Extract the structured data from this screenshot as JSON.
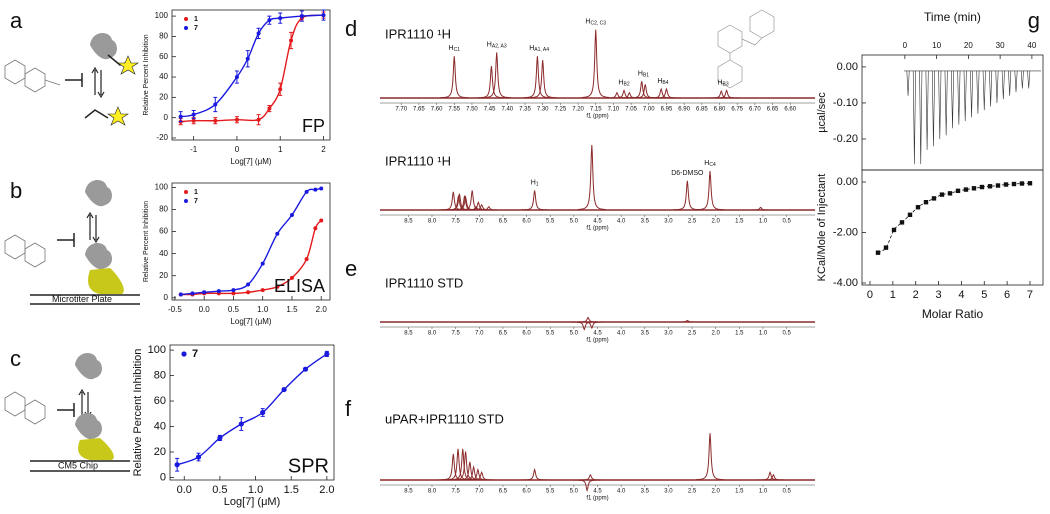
{
  "chart_data": [
    {
      "type": "scatter",
      "panel": "a",
      "annotation": "FP",
      "y_label": "Relative Percent Inhibition",
      "x_label": "Log[7] (μM)",
      "xlim": [
        -1.5,
        2.15
      ],
      "ylim": [
        -22,
        106
      ],
      "xticks": [
        -1,
        0,
        1,
        2
      ],
      "yticks": [
        -20,
        0,
        20,
        40,
        60,
        80,
        100
      ],
      "legend": "upper left",
      "series": [
        {
          "name": "1",
          "color": "#e41a1c",
          "x": [
            -1.3,
            -1,
            -0.5,
            0,
            0.5,
            0.75,
            1,
            1.25,
            1.5,
            2
          ],
          "values": [
            -4,
            -3,
            -3,
            -2,
            -2,
            9,
            28,
            76,
            98,
            101
          ],
          "errors": [
            3,
            3,
            3,
            3,
            5,
            3,
            6,
            8,
            3,
            3
          ]
        },
        {
          "name": "7",
          "color": "#1a1adf",
          "x": [
            -1.3,
            -1,
            -0.5,
            0,
            0.25,
            0.5,
            0.75,
            1,
            1.5,
            2
          ],
          "values": [
            1,
            3,
            13,
            40,
            58,
            83,
            96,
            98,
            100,
            101
          ],
          "errors": [
            5,
            4,
            7,
            6,
            8,
            5,
            4,
            5,
            5,
            5
          ]
        }
      ]
    },
    {
      "type": "scatter",
      "panel": "b",
      "annotation": "ELISA",
      "surface_label": "Microtiter Plate",
      "y_label": "Relative Percent Inhibition",
      "x_label": "Log[7] (μM)",
      "xlim": [
        -0.55,
        2.15
      ],
      "ylim": [
        -2,
        104
      ],
      "xticks": [
        -0.5,
        {
          "value": 0,
          "label": "0.0"
        },
        0.5,
        {
          "value": 1,
          "label": "1.0"
        },
        1.5,
        {
          "value": 2,
          "label": "2.0"
        }
      ],
      "yticks": [
        0,
        20,
        40,
        60,
        80,
        100
      ],
      "legend": "upper left",
      "series": [
        {
          "name": "1",
          "color": "#e41a1c",
          "x": [
            -0.4,
            -0.2,
            0,
            0.25,
            0.5,
            0.75,
            1,
            1.25,
            1.5,
            1.75,
            1.9,
            2
          ],
          "values": [
            3,
            3,
            4,
            4,
            4,
            5,
            7,
            10,
            18,
            35,
            63,
            70
          ]
        },
        {
          "name": "7",
          "color": "#1a1adf",
          "x": [
            -0.4,
            -0.2,
            0,
            0.25,
            0.5,
            0.75,
            1,
            1.25,
            1.5,
            1.75,
            1.9,
            2
          ],
          "values": [
            3,
            4,
            5,
            6,
            7,
            12,
            31,
            58,
            75,
            96,
            98,
            99
          ]
        }
      ]
    },
    {
      "type": "scatter",
      "panel": "c",
      "annotation": "SPR",
      "surface_label": "CM5 Chip",
      "y_label": "Relative Percent Inhibition",
      "x_label": "Log[7] (μM)",
      "xlim": [
        -0.2,
        2.1
      ],
      "ylim": [
        -2,
        104
      ],
      "xticks": [
        {
          "value": 0,
          "label": "0.0"
        },
        0.5,
        {
          "value": 1,
          "label": "1.0"
        },
        1.5,
        {
          "value": 2,
          "label": "2.0"
        }
      ],
      "yticks": [
        0,
        20,
        40,
        60,
        80,
        100
      ],
      "legend": "upper left",
      "series": [
        {
          "name": "7",
          "color": "#1a1adf",
          "x": [
            -0.1,
            0.2,
            0.5,
            0.8,
            1.1,
            1.4,
            1.7,
            2.0
          ],
          "values": [
            10,
            16,
            31,
            42,
            51,
            69,
            85,
            97
          ],
          "errors": [
            5,
            3,
            2,
            5,
            3,
            1,
            1,
            2
          ]
        }
      ]
    },
    {
      "type": "spectrum",
      "panel": "d",
      "title": "IPR1110 ¹H",
      "x_label": "f1 (ppm)",
      "color": "#8b2a2a",
      "xlim": [
        7.76,
        6.53
      ],
      "xticks": [
        {
          "value": 7.7,
          "label": "7.70"
        },
        7.65,
        {
          "value": 7.6,
          "label": "7.60"
        },
        7.55,
        {
          "value": 7.5,
          "label": "7.50"
        },
        7.45,
        {
          "value": 7.4,
          "label": "7.40"
        },
        7.35,
        {
          "value": 7.3,
          "label": "7.30"
        },
        7.25,
        {
          "value": 7.2,
          "label": "7.20"
        },
        7.15,
        {
          "value": 7.1,
          "label": "7.10"
        },
        7.05,
        {
          "value": 7,
          "label": "7.00"
        },
        6.95,
        {
          "value": 6.9,
          "label": "6.90"
        },
        6.85,
        {
          "value": 6.8,
          "label": "6.80"
        },
        6.75,
        {
          "value": 6.7,
          "label": "6.70"
        },
        6.65,
        {
          "value": 6.6,
          "label": "6.60"
        }
      ],
      "x": [
        7.55,
        7.445,
        7.43,
        7.315,
        7.3,
        7.15,
        7.09,
        7.07,
        7.055,
        7.02,
        7.01,
        6.965,
        6.95,
        6.795,
        6.78
      ],
      "values": [
        0.55,
        0.42,
        0.6,
        0.55,
        0.5,
        0.9,
        0.07,
        0.1,
        0.07,
        0.22,
        0.18,
        0.12,
        0.12,
        0.09,
        0.1
      ],
      "peak_labels": [
        {
          "text": "H",
          "sub": "C1",
          "x": 7.55
        },
        {
          "text": "H",
          "sub": "A2, A3",
          "x": 7.43
        },
        {
          "text": "H",
          "sub": "A1, A4",
          "x": 7.31
        },
        {
          "text": "H",
          "sub": "C2, C3",
          "x": 7.15
        },
        {
          "text": "H",
          "sub": "B2",
          "x": 7.07
        },
        {
          "text": "H",
          "sub": "B1",
          "x": 7.015
        },
        {
          "text": "H",
          "sub": "B4",
          "x": 6.96
        },
        {
          "text": "H",
          "sub": "B3",
          "x": 6.79
        }
      ]
    },
    {
      "type": "spectrum",
      "title": "IPR1110 ¹H",
      "x_label": "f1 (ppm)",
      "color": "#8b2a2a",
      "xlim": [
        9.1,
        -0.1
      ],
      "xticks": [
        8.5,
        {
          "value": 8,
          "label": "8.0"
        },
        7.5,
        {
          "value": 7,
          "label": "7.0"
        },
        6.5,
        {
          "value": 6,
          "label": "6.0"
        },
        5.5,
        {
          "value": 5,
          "label": "5.0"
        },
        4.5,
        {
          "value": 4,
          "label": "4.0"
        },
        3.5,
        {
          "value": 3,
          "label": "3.0"
        },
        2.5,
        {
          "value": 2,
          "label": "2.0"
        },
        1.5,
        {
          "value": 1,
          "label": "1.0"
        },
        0.5
      ],
      "x": [
        7.55,
        7.44,
        7.42,
        7.31,
        7.29,
        7.15,
        7.07,
        7.02,
        6.95,
        6.8,
        5.83,
        4.62,
        2.6,
        2.12,
        1.05
      ],
      "values": [
        0.28,
        0.22,
        0.25,
        0.22,
        0.2,
        0.3,
        0.05,
        0.12,
        0.08,
        0.05,
        0.3,
        1.0,
        0.45,
        0.6,
        0.04
      ],
      "peak_labels": [
        {
          "text": "H",
          "sub": "1",
          "x": 5.83
        },
        {
          "text": "D6-DMSO",
          "x": 2.6
        },
        {
          "text": "H",
          "sub": "C4",
          "x": 2.12
        }
      ]
    },
    {
      "type": "spectrum",
      "panel": "e",
      "title": "IPR1110 STD",
      "x_label": "f1 (ppm)",
      "color": "#8b2a2a",
      "xlim": [
        9.1,
        -0.1
      ],
      "xticks": [
        8.5,
        {
          "value": 8,
          "label": "8.0"
        },
        7.5,
        {
          "value": 7,
          "label": "7.0"
        },
        6.5,
        {
          "value": 6,
          "label": "6.0"
        },
        5.5,
        {
          "value": 5,
          "label": "5.0"
        },
        4.5,
        {
          "value": 4,
          "label": "4.0"
        },
        3.5,
        {
          "value": 3,
          "label": "3.0"
        },
        2.5,
        {
          "value": 2,
          "label": "2.0"
        },
        1.5,
        {
          "value": 1,
          "label": "1.0"
        },
        0.5
      ],
      "x": [
        4.78,
        4.7,
        4.62,
        2.6
      ],
      "values": [
        -0.25,
        0.15,
        -0.2,
        0.05
      ]
    },
    {
      "type": "spectrum",
      "panel": "f",
      "title": "uPAR+IPR1110 STD",
      "x_label": "f1 (ppm)",
      "color": "#8b2a2a",
      "xlim": [
        9.1,
        -0.1
      ],
      "xticks": [
        8.5,
        {
          "value": 8,
          "label": "8.0"
        },
        7.5,
        {
          "value": 7,
          "label": "7.0"
        },
        6.5,
        {
          "value": 6,
          "label": "6.0"
        },
        5.5,
        {
          "value": 5,
          "label": "5.0"
        },
        4.5,
        {
          "value": 4,
          "label": "4.0"
        },
        3.5,
        {
          "value": 3,
          "label": "3.0"
        },
        2.5,
        {
          "value": 2,
          "label": "2.0"
        },
        1.5,
        {
          "value": 1,
          "label": "1.0"
        },
        0.5
      ],
      "x": [
        7.55,
        7.45,
        7.35,
        7.29,
        7.2,
        7.12,
        7.03,
        6.95,
        5.83,
        4.72,
        4.65,
        2.12,
        0.85,
        0.78
      ],
      "values": [
        0.5,
        0.6,
        0.6,
        0.55,
        0.35,
        0.25,
        0.2,
        0.15,
        0.2,
        -0.2,
        0.1,
        0.9,
        0.15,
        0.1
      ]
    },
    {
      "type": "impulse",
      "panel": "g",
      "x_label": "Time (min)",
      "y_label": "µcal/sec",
      "color": "#333333",
      "xlim": [
        -13.5,
        43.5
      ],
      "ylim": [
        -0.286,
        0.033
      ],
      "xticks": [
        0,
        10,
        20,
        30,
        40
      ],
      "yticks": [
        {
          "value": 0,
          "label": "0.00"
        },
        {
          "value": -0.1,
          "label": "-0.10"
        },
        {
          "value": -0.2,
          "label": "-0.20"
        }
      ],
      "x": [
        1,
        3,
        5,
        7,
        9,
        11,
        13,
        15,
        17,
        19,
        21,
        23,
        25,
        27,
        29,
        31,
        33,
        35,
        37,
        39
      ],
      "values": [
        -0.08,
        -0.27,
        -0.27,
        -0.23,
        -0.22,
        -0.2,
        -0.19,
        -0.17,
        -0.16,
        -0.15,
        -0.14,
        -0.13,
        -0.12,
        -0.11,
        -0.1,
        -0.09,
        -0.08,
        -0.07,
        -0.06,
        -0.06
      ]
    },
    {
      "type": "scatter",
      "x_label": "Molar Ratio",
      "y_label": "KCal/Mole of Injectant",
      "line_style": "dashed",
      "xlim": [
        -0.35,
        7.57
      ],
      "ylim": [
        -4.08,
        0.475
      ],
      "xticks": [
        0,
        1,
        2,
        3,
        4,
        5,
        6,
        7
      ],
      "yticks": [
        {
          "value": 0,
          "label": "0.00"
        },
        {
          "value": -2,
          "label": "-2.00"
        },
        {
          "value": -4,
          "label": "-4.00"
        }
      ],
      "series": [
        {
          "color": "#111111",
          "marker": "square",
          "x": [
            0.35,
            0.7,
            1.05,
            1.4,
            1.75,
            2.1,
            2.45,
            2.8,
            3.15,
            3.5,
            3.85,
            4.2,
            4.55,
            4.9,
            5.25,
            5.6,
            5.95,
            6.3,
            6.65,
            7.0
          ],
          "values": [
            -2.8,
            -2.6,
            -1.9,
            -1.6,
            -1.3,
            -1.0,
            -0.8,
            -0.65,
            -0.5,
            -0.45,
            -0.35,
            -0.3,
            -0.25,
            -0.2,
            -0.17,
            -0.14,
            -0.1,
            -0.08,
            -0.06,
            -0.05
          ]
        }
      ]
    }
  ]
}
